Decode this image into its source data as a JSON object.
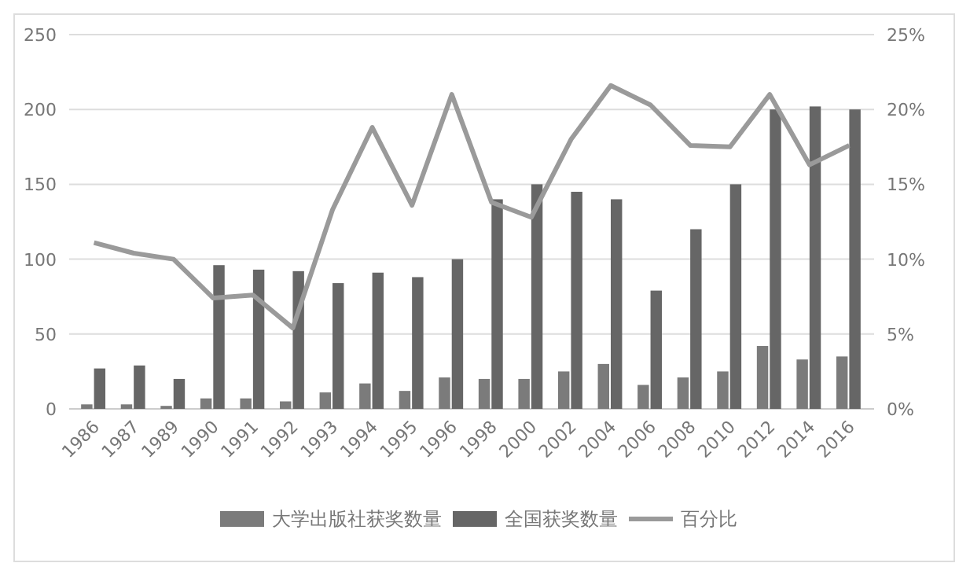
{
  "chart_data": {
    "type": "bar",
    "categories": [
      "1986",
      "1987",
      "1989",
      "1990",
      "1991",
      "1992",
      "1993",
      "1994",
      "1995",
      "1996",
      "1998",
      "2000",
      "2002",
      "2004",
      "2006",
      "2008",
      "2010",
      "2012",
      "2014",
      "2016"
    ],
    "series": [
      {
        "name": "大学出版社获奖数量",
        "color": "#7b7b7b",
        "values": [
          3,
          3,
          2,
          7,
          7,
          5,
          11,
          17,
          12,
          21,
          20,
          20,
          25,
          30,
          16,
          21,
          25,
          42,
          33,
          35
        ]
      },
      {
        "name": "全国获奖数量",
        "color": "#666666",
        "values": [
          27,
          29,
          20,
          96,
          93,
          92,
          84,
          91,
          88,
          100,
          140,
          150,
          145,
          140,
          79,
          120,
          150,
          200,
          202,
          200
        ]
      },
      {
        "name": "百分比",
        "type": "line",
        "axis": "y2",
        "color": "#9a9a9a",
        "values": [
          11.1,
          10.4,
          10.0,
          7.4,
          7.6,
          5.4,
          13.3,
          18.8,
          13.6,
          21.0,
          13.8,
          12.8,
          18.0,
          21.6,
          20.3,
          17.6,
          17.5,
          21.0,
          16.3,
          17.6
        ]
      }
    ],
    "ylim": [
      0,
      250
    ],
    "yticks": [
      0,
      50,
      100,
      150,
      200,
      250
    ],
    "y2lim": [
      0,
      25
    ],
    "y2ticks": [
      {
        "value": 0,
        "label": "0%"
      },
      {
        "value": 5,
        "label": "5%"
      },
      {
        "value": 10,
        "label": "10%"
      },
      {
        "value": 15,
        "label": "15%"
      },
      {
        "value": 20,
        "label": "20%"
      },
      {
        "value": 25,
        "label": "25%"
      }
    ],
    "grid": "y",
    "legend": "bottom"
  }
}
